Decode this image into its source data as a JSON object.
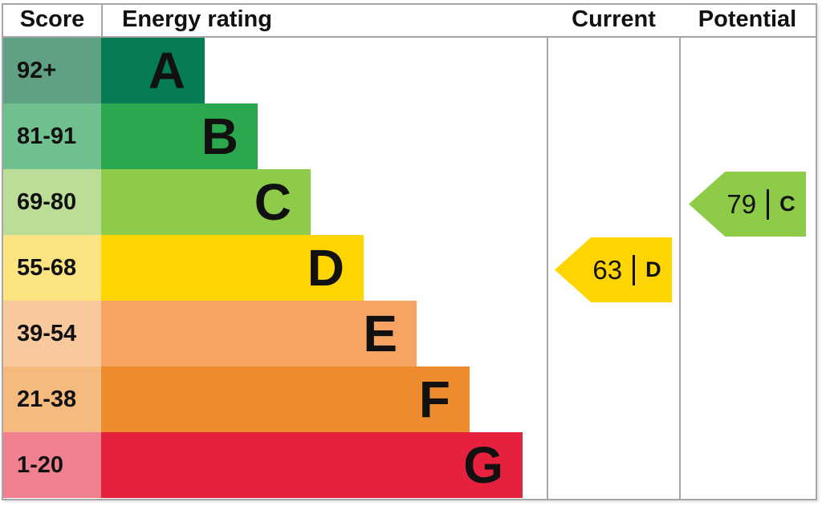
{
  "header": {
    "score_label": "Score",
    "rating_label": "Energy rating",
    "current_label": "Current",
    "potential_label": "Potential"
  },
  "colors": {
    "border": "#a6a6a6",
    "text": "#111111",
    "background": "#ffffff"
  },
  "chart_data": {
    "type": "bar",
    "subtype": "epc-energy-rating",
    "title": "Energy rating",
    "columns": [
      "Score",
      "Energy rating",
      "Current",
      "Potential"
    ],
    "bands": [
      {
        "letter": "A",
        "score_range": "92+",
        "bar_color": "#067c53",
        "score_color": "#61a183"
      },
      {
        "letter": "B",
        "score_range": "81-91",
        "bar_color": "#2ba84e",
        "score_color": "#70bf8f"
      },
      {
        "letter": "C",
        "score_range": "69-80",
        "bar_color": "#8dcb48",
        "score_color": "#bcdd97"
      },
      {
        "letter": "D",
        "score_range": "55-68",
        "bar_color": "#fed500",
        "score_color": "#fbe481"
      },
      {
        "letter": "E",
        "score_range": "39-54",
        "bar_color": "#f6a364",
        "score_color": "#f9c99e"
      },
      {
        "letter": "F",
        "score_range": "21-38",
        "bar_color": "#ee8b2f",
        "score_color": "#f5ba7d"
      },
      {
        "letter": "G",
        "score_range": "1-20",
        "bar_color": "#e6213e",
        "score_color": "#f0808f"
      }
    ],
    "markers": {
      "current": {
        "value": "63",
        "separator": "|",
        "band": "D",
        "color": "#fed500"
      },
      "potential": {
        "value": "79",
        "separator": "|",
        "band": "C",
        "color": "#8dcb48"
      }
    }
  }
}
